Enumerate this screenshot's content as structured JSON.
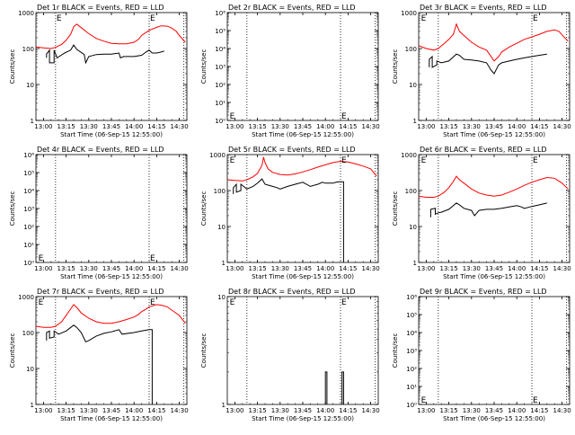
{
  "figure": {
    "background": "#ffffff",
    "events_color": "#000000",
    "lld_color": "#ff0000",
    "ylabel": "Counts/sec",
    "xlabel": "Start Time (06-Sep-15 12:55:00)"
  },
  "chart_data": [
    {
      "type": "line",
      "title": "Det 1r BLACK = Events, RED = LLD",
      "xlabel": "Start Time (06-Sep-15 12:55:00)",
      "ylabel": "Counts/sec",
      "y_scale": "log",
      "xlim": [
        "12:55",
        "14:35"
      ],
      "ylim": [
        1,
        1000
      ],
      "x_tick_labels": [
        "13:00",
        "13:15",
        "13:30",
        "13:45",
        "14:00",
        "14:15",
        "14:30"
      ],
      "y_tick_labels": [
        "1",
        "10",
        "100",
        "1000"
      ],
      "markers": [
        {
          "time": "13:08",
          "label": "E"
        },
        {
          "time": "14:10",
          "label": "E"
        }
      ],
      "marker_y_value": 1000,
      "vlines": [
        "13:08",
        "14:10",
        "14:33"
      ],
      "series": [
        {
          "role": "lld",
          "x": [
            "12:55",
            "13:00",
            "13:05",
            "13:08",
            "13:12",
            "13:15",
            "13:18",
            "13:20",
            "13:22",
            "13:25",
            "13:30",
            "13:35",
            "13:40",
            "13:45",
            "13:50",
            "13:55",
            "14:00",
            "14:03",
            "14:05",
            "14:08",
            "14:10",
            "14:15",
            "14:18",
            "14:22",
            "14:25",
            "14:28",
            "14:30",
            "14:34"
          ],
          "y": [
            110,
            105,
            100,
            108,
            130,
            170,
            250,
            400,
            480,
            380,
            260,
            190,
            160,
            140,
            135,
            135,
            150,
            180,
            230,
            280,
            320,
            390,
            430,
            420,
            370,
            300,
            230,
            150
          ]
        },
        {
          "role": "events",
          "x": [
            "13:02",
            "13:02",
            "13:04",
            "13:04",
            "13:07",
            "13:07",
            "13:09",
            "13:14",
            "13:18",
            "13:20",
            "13:22",
            "13:27",
            "13:28",
            "13:30",
            "13:35",
            "13:40",
            "13:45",
            "13:50",
            "13:51",
            "13:53",
            "14:00",
            "14:05",
            "14:08",
            "14:10",
            "14:12",
            "14:15",
            "14:18",
            "14:20"
          ],
          "y": [
            55,
            70,
            90,
            40,
            40,
            90,
            55,
            75,
            90,
            125,
            95,
            68,
            40,
            60,
            68,
            70,
            70,
            75,
            55,
            60,
            60,
            65,
            80,
            90,
            75,
            75,
            80,
            85
          ]
        }
      ]
    },
    {
      "type": "line",
      "title": "Det 2r BLACK = Events, RED = LLD",
      "xlabel": "Start Time (06-Sep-15 12:55:00)",
      "ylabel": "Counts/sec",
      "y_scale": "log",
      "xlim": [
        "12:55",
        "14:35"
      ],
      "ylim": [
        1,
        1000000
      ],
      "x_tick_labels": [
        "13:00",
        "13:15",
        "13:30",
        "13:45",
        "14:00",
        "14:15",
        "14:30"
      ],
      "y_tick_labels": [
        "10⁰",
        "10¹",
        "10²",
        "10³",
        "10⁴",
        "10⁵",
        "10⁶"
      ],
      "markers": [
        {
          "time": "12:56",
          "label": "E"
        },
        {
          "time": "14:10",
          "label": "E"
        }
      ],
      "marker_y_value": 1,
      "vlines": [
        "13:08",
        "14:10",
        "14:33"
      ],
      "series": []
    },
    {
      "type": "line",
      "title": "Det 3r BLACK = Events, RED = LLD",
      "xlabel": "Start Time (06-Sep-15 12:55:00)",
      "ylabel": "Counts/sec",
      "y_scale": "log",
      "xlim": [
        "12:55",
        "14:35"
      ],
      "ylim": [
        1,
        1000
      ],
      "x_tick_labels": [
        "13:00",
        "13:15",
        "13:30",
        "13:45",
        "14:00",
        "14:15",
        "14:30"
      ],
      "y_tick_labels": [
        "1",
        "10",
        "100",
        "1000"
      ],
      "markers": [
        {
          "time": "12:56",
          "label": "E"
        },
        {
          "time": "14:10",
          "label": "E"
        }
      ],
      "marker_y_value": 1000,
      "vlines": [
        "13:08",
        "14:10",
        "14:33"
      ],
      "series": [
        {
          "role": "lld",
          "x": [
            "12:55",
            "13:00",
            "13:05",
            "13:08",
            "13:12",
            "13:15",
            "13:18",
            "13:20",
            "13:22",
            "13:25",
            "13:30",
            "13:35",
            "13:40",
            "13:43",
            "13:45",
            "13:48",
            "13:50",
            "13:55",
            "14:00",
            "14:05",
            "14:10",
            "14:15",
            "14:20",
            "14:25",
            "14:28",
            "14:30",
            "14:34"
          ],
          "y": [
            120,
            100,
            90,
            100,
            140,
            180,
            250,
            480,
            300,
            230,
            150,
            110,
            90,
            60,
            45,
            60,
            80,
            110,
            140,
            180,
            210,
            250,
            300,
            330,
            300,
            240,
            160
          ]
        },
        {
          "role": "events",
          "x": [
            "13:02",
            "13:02",
            "13:04",
            "13:04",
            "13:07",
            "13:07",
            "13:10",
            "13:15",
            "13:20",
            "13:22",
            "13:25",
            "13:30",
            "13:35",
            "13:40",
            "13:43",
            "13:45",
            "13:48",
            "13:50",
            "13:55",
            "14:00",
            "14:05",
            "14:10",
            "14:15",
            "14:20"
          ],
          "y": [
            30,
            50,
            60,
            30,
            35,
            45,
            40,
            45,
            70,
            65,
            50,
            48,
            45,
            40,
            25,
            20,
            35,
            40,
            45,
            50,
            55,
            60,
            65,
            70
          ]
        }
      ]
    },
    {
      "type": "line",
      "title": "Det 4r BLACK = Events, RED = LLD",
      "xlabel": "Start Time (06-Sep-15 12:55:00)",
      "ylabel": "Counts/sec",
      "y_scale": "log",
      "xlim": [
        "12:55",
        "14:35"
      ],
      "ylim": [
        1,
        1000000
      ],
      "x_tick_labels": [
        "13:00",
        "13:15",
        "13:30",
        "13:45",
        "14:00",
        "14:15",
        "14:30"
      ],
      "y_tick_labels": [
        "10⁰",
        "10¹",
        "10²",
        "10³",
        "10⁴",
        "10⁵",
        "10⁶"
      ],
      "markers": [
        {
          "time": "12:56",
          "label": "E"
        },
        {
          "time": "14:10",
          "label": "E"
        }
      ],
      "marker_y_value": 1,
      "vlines": [
        "13:08",
        "14:10",
        "14:33"
      ],
      "series": []
    },
    {
      "type": "line",
      "title": "Det 5r BLACK = Events, RED = LLD",
      "xlabel": "Start Time (06-Sep-15 12:55:00)",
      "ylabel": "Counts/sec",
      "y_scale": "log",
      "xlim": [
        "12:55",
        "14:35"
      ],
      "ylim": [
        1,
        1000
      ],
      "x_tick_labels": [
        "13:00",
        "13:15",
        "13:30",
        "13:45",
        "14:00",
        "14:15",
        "14:30"
      ],
      "y_tick_labels": [
        "1",
        "10",
        "100",
        "1000"
      ],
      "markers": [
        {
          "time": "12:56",
          "label": "E"
        },
        {
          "time": "14:10",
          "label": "E"
        }
      ],
      "marker_y_value": 1000,
      "vlines": [
        "13:08",
        "14:10",
        "14:33"
      ],
      "series": [
        {
          "role": "lld",
          "x": [
            "12:55",
            "13:00",
            "13:05",
            "13:08",
            "13:12",
            "13:15",
            "13:18",
            "13:19",
            "13:20",
            "13:22",
            "13:25",
            "13:30",
            "13:35",
            "13:40",
            "13:45",
            "13:50",
            "13:55",
            "14:00",
            "14:05",
            "14:10",
            "14:15",
            "14:20",
            "14:25",
            "14:30",
            "14:34"
          ],
          "y": [
            200,
            190,
            185,
            200,
            240,
            300,
            500,
            850,
            600,
            400,
            320,
            280,
            270,
            290,
            330,
            380,
            450,
            520,
            600,
            650,
            620,
            550,
            480,
            400,
            250
          ]
        },
        {
          "role": "events",
          "x": [
            "12:59",
            "12:59",
            "13:01",
            "13:01",
            "13:04",
            "13:04",
            "13:08",
            "13:12",
            "13:15",
            "13:18",
            "13:20",
            "13:25",
            "13:28",
            "13:30",
            "13:35",
            "13:40",
            "13:45",
            "13:50",
            "13:55",
            "13:58",
            "14:00",
            "14:05",
            "14:07",
            "14:09",
            "14:12",
            "14:12"
          ],
          "y": [
            80,
            120,
            150,
            90,
            100,
            150,
            110,
            130,
            160,
            210,
            150,
            130,
            120,
            110,
            130,
            150,
            170,
            130,
            150,
            170,
            160,
            160,
            170,
            175,
            175,
            1
          ]
        }
      ]
    },
    {
      "type": "line",
      "title": "Det 6r BLACK = Events, RED = LLD",
      "xlabel": "Start Time (06-Sep-15 12:55:00)",
      "ylabel": "Counts/sec",
      "y_scale": "log",
      "xlim": [
        "12:55",
        "14:35"
      ],
      "ylim": [
        1,
        1000
      ],
      "x_tick_labels": [
        "13:00",
        "13:15",
        "13:30",
        "13:45",
        "14:00",
        "14:15",
        "14:30"
      ],
      "y_tick_labels": [
        "1",
        "10",
        "100",
        "1000"
      ],
      "markers": [
        {
          "time": "12:56",
          "label": "E"
        },
        {
          "time": "14:10",
          "label": "E"
        }
      ],
      "marker_y_value": 1000,
      "vlines": [
        "13:08",
        "14:10",
        "14:33"
      ],
      "series": [
        {
          "role": "lld",
          "x": [
            "12:55",
            "13:00",
            "13:05",
            "13:08",
            "13:12",
            "13:15",
            "13:18",
            "13:20",
            "13:22",
            "13:25",
            "13:30",
            "13:35",
            "13:40",
            "13:45",
            "13:50",
            "13:55",
            "14:00",
            "14:05",
            "14:10",
            "14:15",
            "14:20",
            "14:25",
            "14:30",
            "14:34"
          ],
          "y": [
            70,
            65,
            65,
            70,
            90,
            120,
            180,
            250,
            200,
            160,
            110,
            85,
            75,
            70,
            75,
            90,
            110,
            140,
            170,
            200,
            230,
            220,
            160,
            110
          ]
        },
        {
          "role": "events",
          "x": [
            "13:03",
            "13:03",
            "13:06",
            "13:06",
            "13:08",
            "13:10",
            "13:15",
            "13:20",
            "13:22",
            "13:25",
            "13:30",
            "13:32",
            "13:35",
            "13:40",
            "13:45",
            "13:50",
            "13:55",
            "14:00",
            "14:03",
            "14:05",
            "14:10",
            "14:15",
            "14:20"
          ],
          "y": [
            18,
            30,
            32,
            22,
            24,
            25,
            30,
            45,
            40,
            32,
            28,
            20,
            28,
            30,
            30,
            32,
            35,
            38,
            35,
            32,
            36,
            40,
            45
          ]
        }
      ]
    },
    {
      "type": "line",
      "title": "Det 7r BLACK = Events, RED = LLD",
      "xlabel": "Start Time (06-Sep-15 12:55:00)",
      "ylabel": "Counts/sec",
      "y_scale": "log",
      "xlim": [
        "12:55",
        "14:35"
      ],
      "ylim": [
        1,
        1000
      ],
      "x_tick_labels": [
        "13:00",
        "13:15",
        "13:30",
        "13:45",
        "14:00",
        "14:15",
        "14:30"
      ],
      "y_tick_labels": [
        "1",
        "10",
        "100",
        "1000"
      ],
      "markers": [
        {
          "time": "12:56",
          "label": "E"
        },
        {
          "time": "14:10",
          "label": "E"
        }
      ],
      "marker_y_value": 1000,
      "vlines": [
        "13:08",
        "14:10",
        "14:33"
      ],
      "series": [
        {
          "role": "lld",
          "x": [
            "12:55",
            "13:00",
            "13:05",
            "13:08",
            "13:12",
            "13:15",
            "13:18",
            "13:20",
            "13:22",
            "13:25",
            "13:30",
            "13:35",
            "13:40",
            "13:45",
            "13:50",
            "13:55",
            "14:00",
            "14:03",
            "14:05",
            "14:08",
            "14:10",
            "14:15",
            "14:18",
            "14:22",
            "14:25",
            "14:30",
            "14:34"
          ],
          "y": [
            150,
            140,
            140,
            150,
            200,
            300,
            450,
            600,
            500,
            350,
            250,
            200,
            180,
            180,
            200,
            230,
            270,
            320,
            380,
            450,
            520,
            600,
            580,
            520,
            420,
            300,
            180
          ]
        },
        {
          "role": "events",
          "x": [
            "13:02",
            "13:02",
            "13:04",
            "13:04",
            "13:07",
            "13:07",
            "13:10",
            "13:15",
            "13:20",
            "13:22",
            "13:25",
            "13:28",
            "13:30",
            "13:35",
            "13:40",
            "13:45",
            "13:50",
            "13:52",
            "14:00",
            "14:05",
            "14:10",
            "14:12",
            "14:12"
          ],
          "y": [
            60,
            100,
            110,
            70,
            75,
            110,
            90,
            110,
            160,
            140,
            100,
            55,
            60,
            80,
            95,
            105,
            120,
            90,
            100,
            110,
            120,
            120,
            1
          ]
        }
      ]
    },
    {
      "type": "line",
      "title": "Det 8r BLACK = Events, RED = LLD",
      "xlabel": "Start Time (06-Sep-15 12:55:00)",
      "ylabel": "Counts/sec",
      "y_scale": "log",
      "xlim": [
        "12:55",
        "14:35"
      ],
      "ylim": [
        1,
        10
      ],
      "x_tick_labels": [
        "13:00",
        "13:15",
        "13:30",
        "13:45",
        "14:00",
        "14:15",
        "14:30"
      ],
      "y_tick_labels": [
        "1",
        "10"
      ],
      "markers": [
        {
          "time": "12:56",
          "label": "E"
        },
        {
          "time": "14:10",
          "label": "E"
        }
      ],
      "marker_y_value": 10,
      "vlines": [
        "13:08",
        "14:10",
        "14:33"
      ],
      "series": [
        {
          "role": "events",
          "x": [
            "14:00",
            "14:00",
            "14:01",
            "14:01"
          ],
          "y": [
            1,
            2,
            2,
            1
          ]
        },
        {
          "role": "events",
          "x": [
            "14:11",
            "14:11",
            "14:12",
            "14:12"
          ],
          "y": [
            1,
            2,
            2,
            1
          ]
        }
      ]
    },
    {
      "type": "line",
      "title": "Det 9r BLACK = Events, RED = LLD",
      "xlabel": "Start Time (06-Sep-15 12:55:00)",
      "ylabel": "Counts/sec",
      "y_scale": "log",
      "xlim": [
        "12:55",
        "14:35"
      ],
      "ylim": [
        1,
        1000000
      ],
      "x_tick_labels": [
        "13:00",
        "13:15",
        "13:30",
        "13:45",
        "14:00",
        "14:15",
        "14:30"
      ],
      "y_tick_labels": [
        "10⁰",
        "10¹",
        "10²",
        "10³",
        "10⁴",
        "10⁵",
        "10⁶"
      ],
      "markers": [
        {
          "time": "12:56",
          "label": "E"
        },
        {
          "time": "14:10",
          "label": "E"
        }
      ],
      "marker_y_value": 1,
      "vlines": [
        "13:08",
        "14:10",
        "14:33"
      ],
      "series": []
    }
  ]
}
